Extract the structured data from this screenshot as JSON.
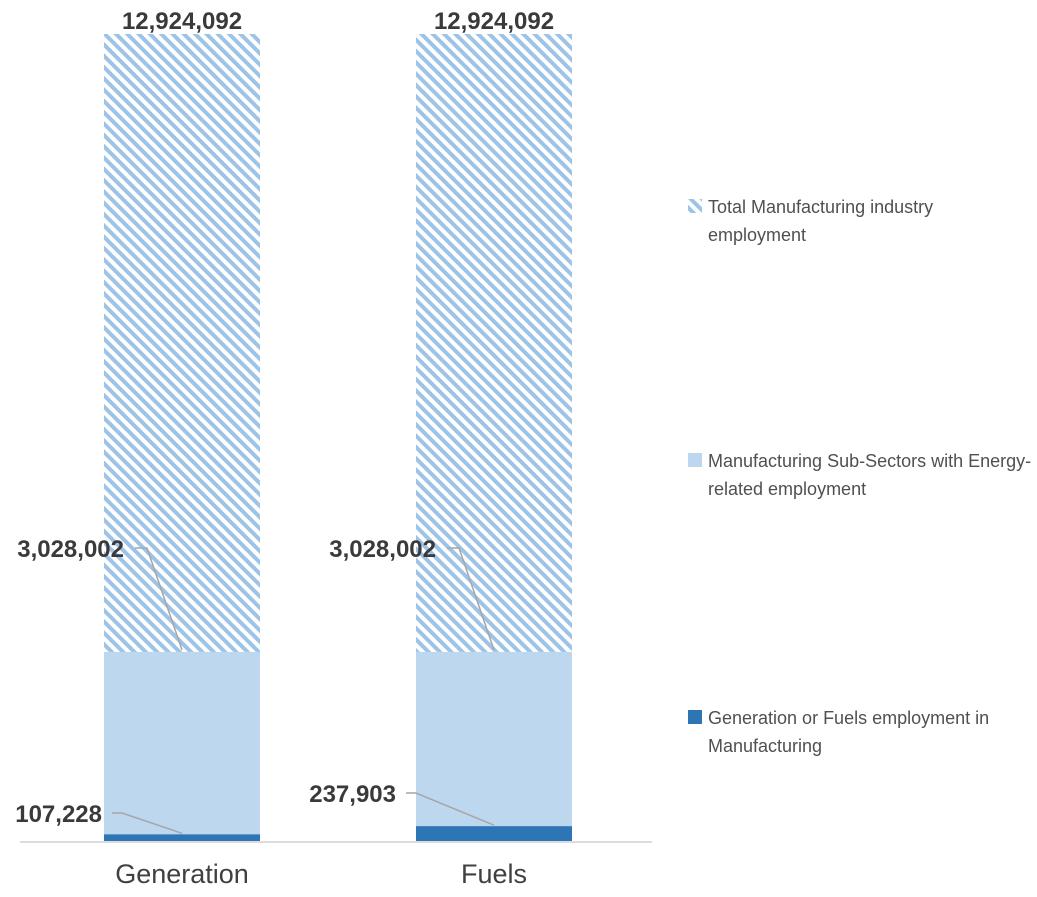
{
  "chart_data": {
    "type": "bar",
    "categories": [
      "Generation",
      "Fuels"
    ],
    "series": [
      {
        "name": "Generation or Fuels employment in Manufacturing",
        "values": [
          107228,
          237903
        ],
        "labels": [
          "107,228",
          "237,903"
        ],
        "color": "#2e75b6"
      },
      {
        "name": "Manufacturing Sub-Sectors with Energy-related employment",
        "values": [
          3028002,
          3028002
        ],
        "labels": [
          "3,028,002",
          "3,028,002"
        ],
        "color": "#bdd7ee"
      },
      {
        "name": "Total Manufacturing industry employment",
        "values": [
          12924092,
          12924092
        ],
        "labels": [
          "12,924,092",
          "12,924,092"
        ],
        "color": "#9dc3e6",
        "pattern": "diagonal-stripes"
      }
    ],
    "ylim": [
      0,
      12924092
    ],
    "grid": false,
    "legend_position": "right"
  }
}
